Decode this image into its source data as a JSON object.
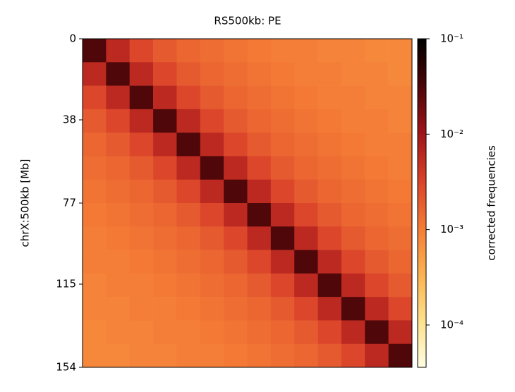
{
  "chart_data": {
    "type": "heatmap",
    "title": "RS500kb: PE",
    "y_label": "chrX:500kb [Mb]",
    "ylim": [
      0,
      154
    ],
    "yticks": [
      0,
      38,
      77,
      115,
      154
    ],
    "colorbar_label": "corrected frequencies",
    "color_scale": "log",
    "clim": [
      3.6e-05,
      0.1
    ],
    "cticks": [
      {
        "value": 0.1,
        "label": "10⁻¹"
      },
      {
        "value": 0.01,
        "label": "10⁻²"
      },
      {
        "value": 0.001,
        "label": "10⁻³"
      },
      {
        "value": 0.0001,
        "label": "10⁻⁴"
      }
    ],
    "colormap": [
      "#fffde2",
      "#fde08a",
      "#fbb150",
      "#f47a35",
      "#d9402a",
      "#9e1418",
      "#4a0608",
      "#000000"
    ],
    "matrix": [
      [
        0.03,
        0.006,
        0.003,
        0.002,
        0.0016,
        0.0014,
        0.0012,
        0.0011,
        0.001,
        0.001,
        0.0009,
        0.0009,
        0.0008,
        0.0008
      ],
      [
        0.006,
        0.03,
        0.006,
        0.003,
        0.002,
        0.0016,
        0.0014,
        0.0012,
        0.0011,
        0.001,
        0.001,
        0.0009,
        0.0009,
        0.0008
      ],
      [
        0.003,
        0.006,
        0.03,
        0.006,
        0.003,
        0.002,
        0.0016,
        0.0014,
        0.0012,
        0.0011,
        0.001,
        0.001,
        0.0009,
        0.0009
      ],
      [
        0.002,
        0.003,
        0.006,
        0.03,
        0.006,
        0.003,
        0.002,
        0.0016,
        0.0014,
        0.0012,
        0.0011,
        0.001,
        0.001,
        0.0009
      ],
      [
        0.0016,
        0.002,
        0.003,
        0.006,
        0.03,
        0.006,
        0.003,
        0.002,
        0.0016,
        0.0014,
        0.0012,
        0.0011,
        0.001,
        0.001
      ],
      [
        0.0014,
        0.0016,
        0.002,
        0.003,
        0.006,
        0.03,
        0.006,
        0.003,
        0.002,
        0.0016,
        0.0014,
        0.0012,
        0.0011,
        0.001
      ],
      [
        0.0012,
        0.0014,
        0.0016,
        0.002,
        0.003,
        0.006,
        0.03,
        0.006,
        0.003,
        0.002,
        0.0016,
        0.0014,
        0.0012,
        0.0011
      ],
      [
        0.0011,
        0.0012,
        0.0014,
        0.0016,
        0.002,
        0.003,
        0.006,
        0.03,
        0.006,
        0.003,
        0.002,
        0.0016,
        0.0014,
        0.0012
      ],
      [
        0.001,
        0.0011,
        0.0012,
        0.0014,
        0.0016,
        0.002,
        0.003,
        0.006,
        0.03,
        0.006,
        0.003,
        0.002,
        0.0016,
        0.0014
      ],
      [
        0.001,
        0.001,
        0.0011,
        0.0012,
        0.0014,
        0.0016,
        0.002,
        0.003,
        0.006,
        0.03,
        0.006,
        0.003,
        0.002,
        0.0016
      ],
      [
        0.0009,
        0.001,
        0.001,
        0.0011,
        0.0012,
        0.0014,
        0.0016,
        0.002,
        0.003,
        0.006,
        0.03,
        0.006,
        0.003,
        0.002
      ],
      [
        0.0009,
        0.0009,
        0.001,
        0.001,
        0.0011,
        0.0012,
        0.0014,
        0.0016,
        0.002,
        0.003,
        0.006,
        0.03,
        0.006,
        0.003
      ],
      [
        0.0008,
        0.0009,
        0.0009,
        0.001,
        0.001,
        0.0011,
        0.0012,
        0.0014,
        0.0016,
        0.002,
        0.003,
        0.006,
        0.03,
        0.006
      ],
      [
        0.0008,
        0.0008,
        0.0009,
        0.0009,
        0.001,
        0.001,
        0.0011,
        0.0012,
        0.0014,
        0.0016,
        0.002,
        0.003,
        0.006,
        0.03
      ]
    ]
  }
}
